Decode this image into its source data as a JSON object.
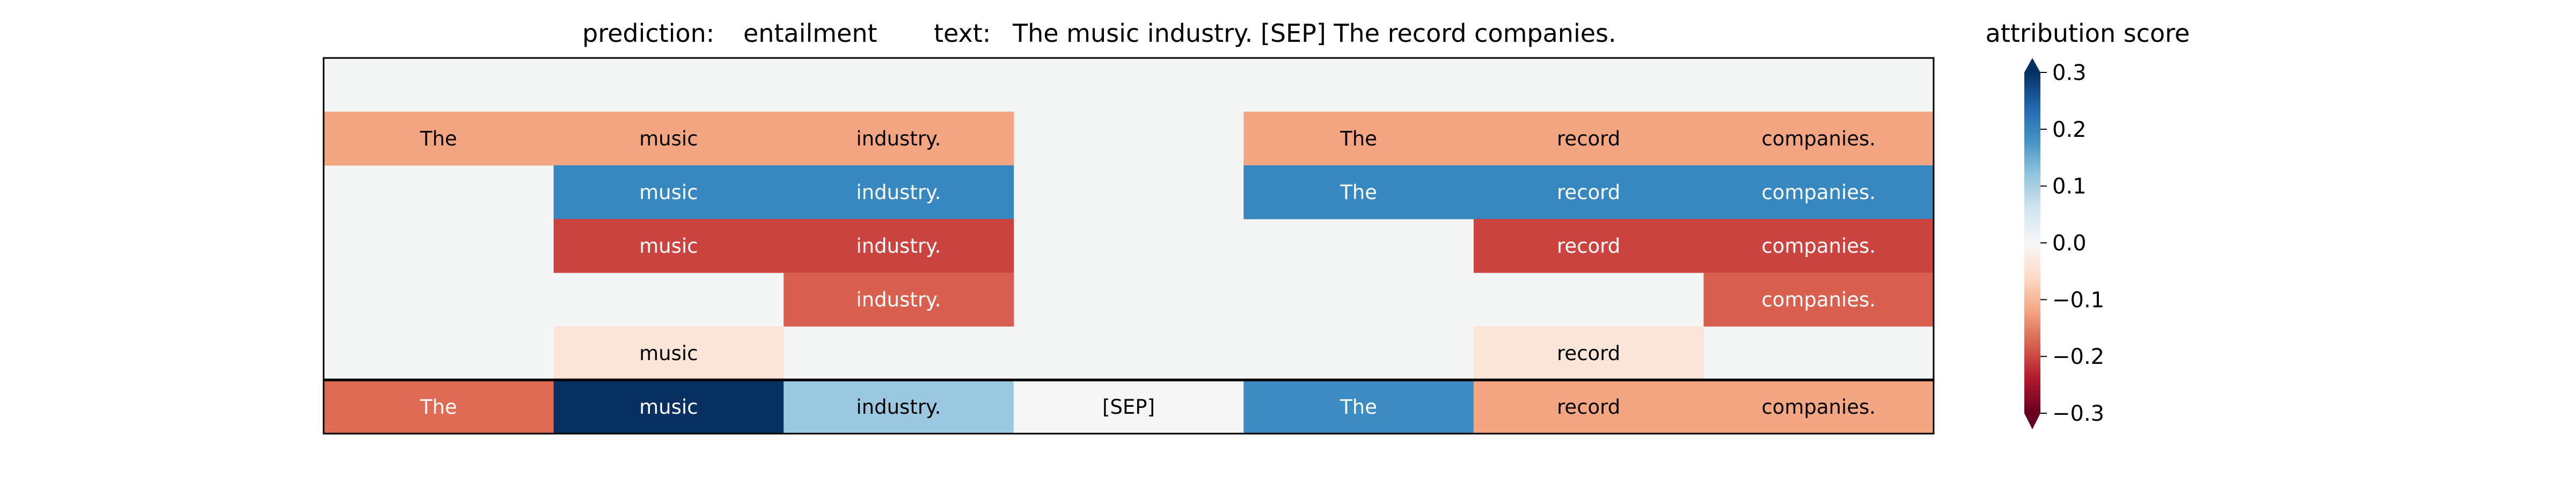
{
  "chart_data": {
    "type": "heatmap",
    "title": {
      "prediction_label": "prediction:",
      "prediction_value": "entailment",
      "text_label": "text:",
      "text_value": "The music industry. [SEP] The record companies."
    },
    "colorbar": {
      "title": "attribution score",
      "ticks": [
        "−0.3",
        "−0.2",
        "−0.1",
        "0.0",
        "0.1",
        "0.2",
        "0.3"
      ],
      "range": [
        -0.3,
        0.3
      ],
      "colormap": "RdBu",
      "extend": "both"
    },
    "columns": [
      "The",
      "music",
      "industry.",
      "[SEP]",
      "The",
      "record",
      "companies."
    ],
    "background_color": "#f4f6f6",
    "rows": [
      {
        "cells": [
          null,
          null,
          null,
          null,
          null,
          null,
          null
        ]
      },
      {
        "cells": [
          {
            "text": "The",
            "color": "#f4a682"
          },
          {
            "text": "music",
            "color": "#f4a682"
          },
          {
            "text": "industry.",
            "color": "#f4a682"
          },
          null,
          {
            "text": "The",
            "color": "#f4a682"
          },
          {
            "text": "record",
            "color": "#f4a682"
          },
          {
            "text": "companies.",
            "color": "#f4a682"
          }
        ]
      },
      {
        "cells": [
          null,
          {
            "text": "music",
            "color": "#3787c0"
          },
          {
            "text": "industry.",
            "color": "#3787c0"
          },
          null,
          {
            "text": "The",
            "color": "#3787c0"
          },
          {
            "text": "record",
            "color": "#3787c0"
          },
          {
            "text": "companies.",
            "color": "#3787c0"
          }
        ]
      },
      {
        "cells": [
          null,
          {
            "text": "music",
            "color": "#cc4440"
          },
          {
            "text": "industry.",
            "color": "#cc4440"
          },
          null,
          null,
          {
            "text": "record",
            "color": "#cc4440"
          },
          {
            "text": "companies.",
            "color": "#cc4440"
          }
        ]
      },
      {
        "cells": [
          null,
          null,
          {
            "text": "industry.",
            "color": "#d95f4e"
          },
          null,
          null,
          null,
          {
            "text": "companies.",
            "color": "#d95f4e"
          }
        ]
      },
      {
        "cells": [
          null,
          {
            "text": "music",
            "color": "#fbe5d9"
          },
          null,
          null,
          null,
          {
            "text": "record",
            "color": "#fbe5d9"
          },
          null
        ]
      },
      {
        "cells": [
          {
            "text": "The",
            "color": "#e06b55"
          },
          {
            "text": "music",
            "color": "#053061"
          },
          {
            "text": "industry.",
            "color": "#9ac8e0"
          },
          {
            "text": "[SEP]",
            "color": "#f6f6f6"
          },
          {
            "text": "The",
            "color": "#3c8bc2"
          },
          {
            "text": "record",
            "color": "#f4a582"
          },
          {
            "text": "companies.",
            "color": "#f4a582"
          }
        ]
      }
    ]
  }
}
